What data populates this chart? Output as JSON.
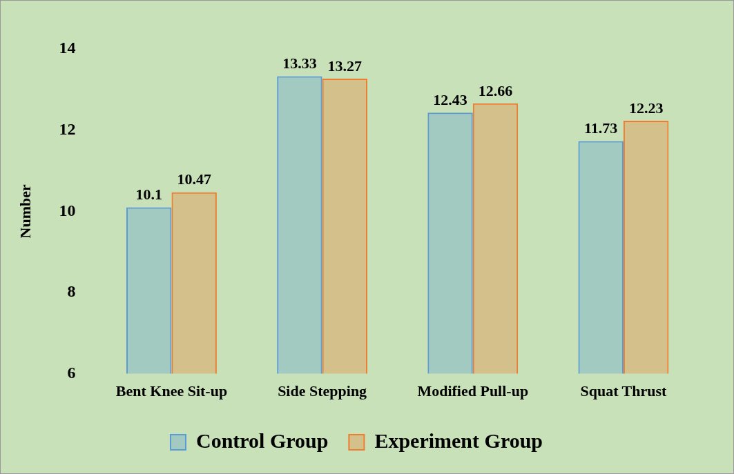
{
  "chart_data": {
    "type": "bar",
    "ylabel": "Number",
    "categories": [
      "Bent Knee Sit-up",
      "Side Stepping",
      "Modified Pull-up",
      "Squat Thrust"
    ],
    "series": [
      {
        "name": "Control Group",
        "color": "#5b9bd5",
        "values": [
          10.1,
          13.33,
          12.43,
          11.73
        ]
      },
      {
        "name": "Experiment Group",
        "color": "#ed7d31",
        "values": [
          10.47,
          13.27,
          12.66,
          12.23
        ]
      }
    ],
    "ylim": [
      6,
      14
    ],
    "yticks": [
      6,
      8,
      10,
      12,
      14
    ],
    "grid": false,
    "legend": "bottom",
    "data_labels": true
  }
}
